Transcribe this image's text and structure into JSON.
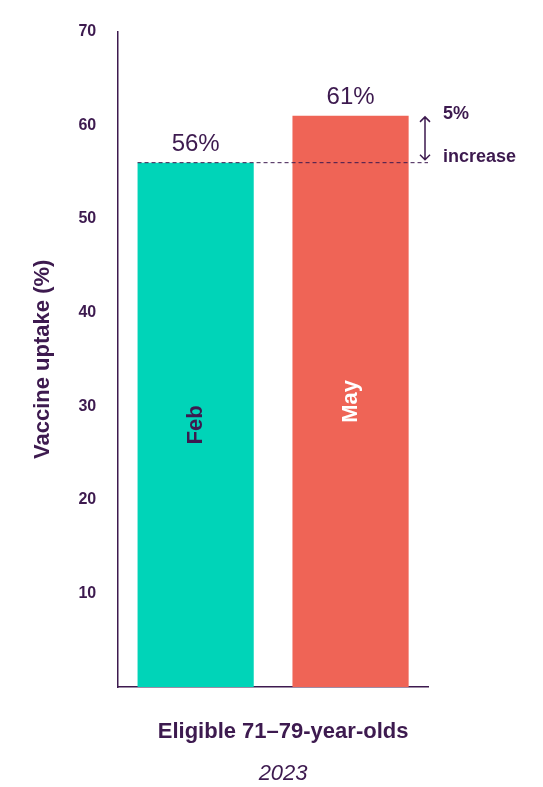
{
  "chart_data": {
    "type": "bar",
    "categories": [
      "Feb",
      "May"
    ],
    "values": [
      56,
      61
    ],
    "value_labels": [
      "56%",
      "61%"
    ],
    "colors": [
      "#00d4b8",
      "#ef6456"
    ],
    "ylabel": "Vaccine uptake (%)",
    "xlabel": "Eligible 71–79-year-olds",
    "subtitle": "2023",
    "annotation": "5% increase",
    "ylim": [
      0,
      70
    ],
    "yticks": [
      10,
      20,
      30,
      40,
      50,
      60,
      70
    ],
    "grid": false,
    "data_labels": true,
    "tick_labels": "y"
  }
}
